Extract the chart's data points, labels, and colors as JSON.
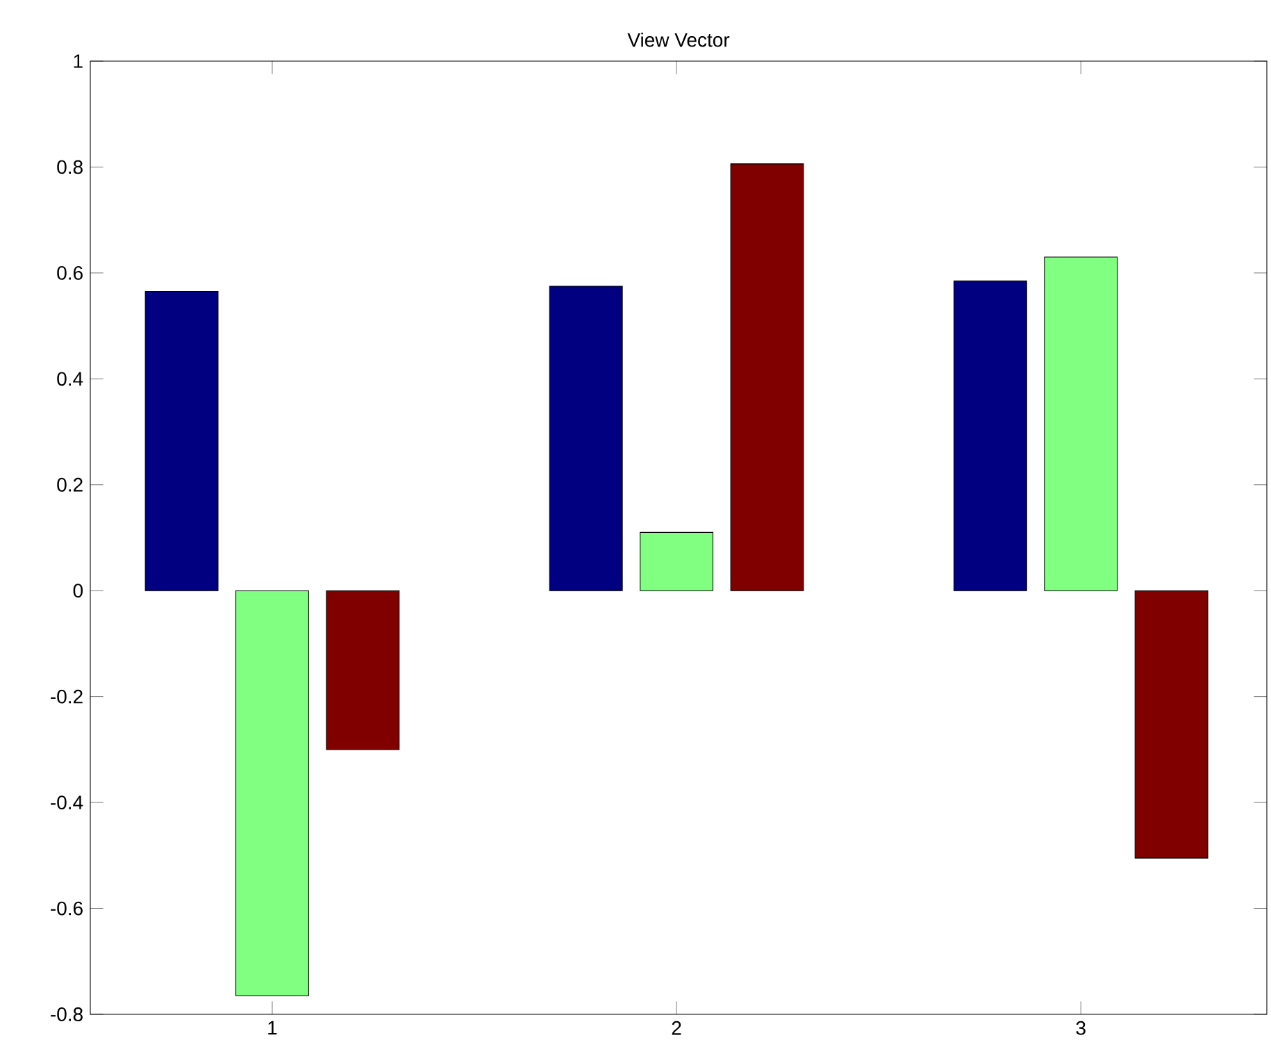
{
  "chart_data": {
    "type": "bar",
    "title": "View Vector",
    "categories": [
      "1",
      "2",
      "3"
    ],
    "series": [
      {
        "color": "#000080",
        "values": [
          0.565,
          0.575,
          0.585
        ]
      },
      {
        "color": "#80ff80",
        "values": [
          -0.765,
          0.11,
          0.63
        ]
      },
      {
        "color": "#800000",
        "values": [
          -0.3,
          0.806,
          -0.505
        ]
      }
    ],
    "ylim": [
      -0.8,
      1
    ],
    "yticks": [
      -0.8,
      -0.6,
      -0.4,
      -0.2,
      0,
      0.2,
      0.4,
      0.6,
      0.8,
      1
    ],
    "grid": false
  }
}
